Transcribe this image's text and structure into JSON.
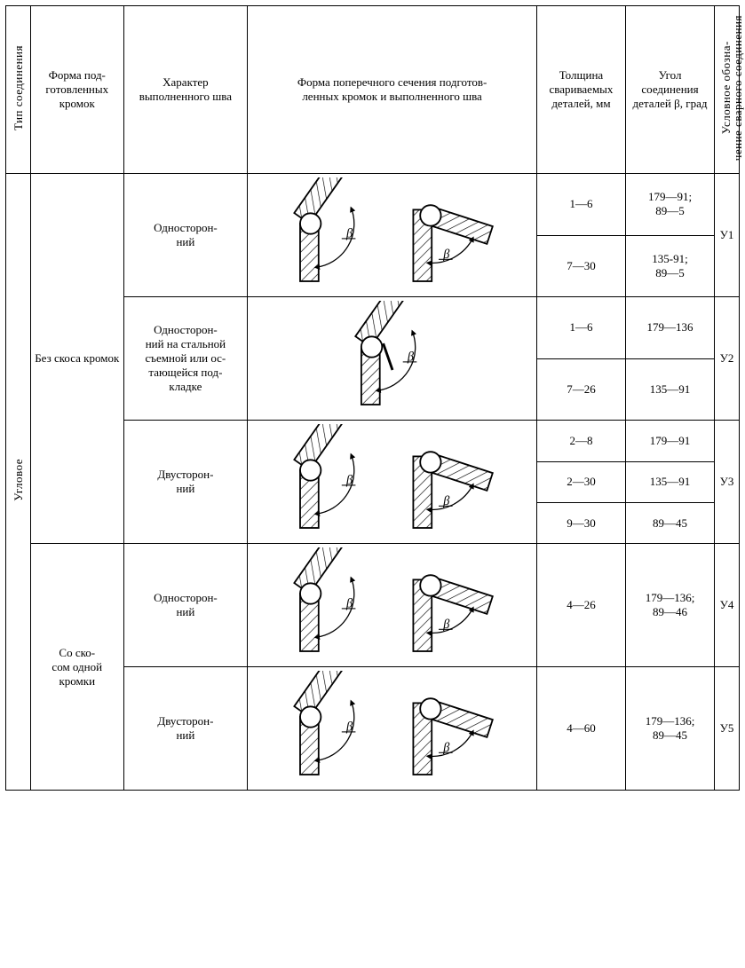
{
  "colors": {
    "stroke": "#000000",
    "hatch_stroke": "#000000",
    "bg": "#ffffff"
  },
  "typography": {
    "base_font": "Times New Roman",
    "base_size_pt": 10
  },
  "table": {
    "columns": {
      "c1_label": "Тип соединения",
      "c2_label": "Форма под-\nготовленных кромок",
      "c3_label": "Характер выполненного шва",
      "c4_label": "Форма поперечного сечения подготов-\nленных кромок и выполненного шва",
      "c5_label": "Толщина свариваемых деталей, мм",
      "c6_label": "Угол соединения деталей β, град",
      "c7_label": "Условное обозна-\nчение сварного соединения"
    },
    "type_label": "Угловое",
    "groups": [
      {
        "form_prep": "Без скоса кромок",
        "rows": [
          {
            "char": "Односторон-\nний",
            "diagram_kind": "pair",
            "thick_angle": [
              {
                "thick": "1—6",
                "angle": "179—91;\n89—5"
              },
              {
                "thick": "7—30",
                "angle": "135-91;\n89—5"
              }
            ],
            "code": "У1"
          },
          {
            "char": "Односторон-\nний на стальной съемной или ос-\nтающейся под-\nкладке",
            "diagram_kind": "single_plate",
            "thick_angle": [
              {
                "thick": "1—6",
                "angle": "179—136"
              },
              {
                "thick": "7—26",
                "angle": "135—91"
              }
            ],
            "code": "У2"
          },
          {
            "char": "Двусторон-\nний",
            "diagram_kind": "pair",
            "thick_angle": [
              {
                "thick": "2—8",
                "angle": "179—91"
              },
              {
                "thick": "2—30",
                "angle": "135—91"
              },
              {
                "thick": "9—30",
                "angle": "89—45"
              }
            ],
            "code": "У3"
          }
        ]
      },
      {
        "form_prep": "Со ско-\nсом одной кромки",
        "rows": [
          {
            "char": "Односторон-\nний",
            "diagram_kind": "pair",
            "thick_angle": [
              {
                "thick": "4—26",
                "angle": "179—136;\n89—46"
              }
            ],
            "code": "У4"
          },
          {
            "char": "Двусторон-\nний",
            "diagram_kind": "pair",
            "thick_angle": [
              {
                "thick": "4—60",
                "angle": "179—136;\n89—45"
              }
            ],
            "code": "У5"
          }
        ]
      }
    ]
  },
  "diagrams": {
    "hatch": {
      "spacing": 6,
      "angle_deg": 45
    },
    "beta_mark": "β"
  }
}
